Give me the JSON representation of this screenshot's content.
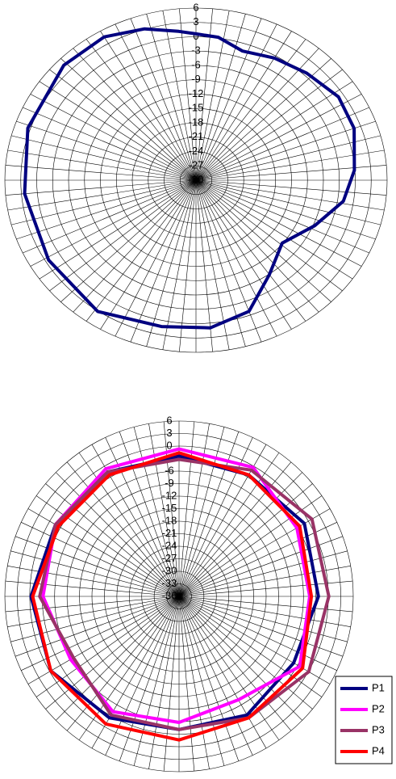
{
  "chart_data": [
    {
      "type": "polar",
      "grid": true,
      "rlim": [
        -30,
        6
      ],
      "rticks": [
        6,
        3,
        0,
        -3,
        -6,
        -9,
        -12,
        -15,
        -18,
        -21,
        -24,
        -27,
        -30
      ],
      "series": [
        {
          "color": "#000080",
          "angles": [
            0,
            8,
            18,
            30,
            43,
            57,
            70,
            86,
            99,
            113,
            129,
            145,
            160,
            175,
            192,
            214,
            239,
            265,
            289,
            314,
            330,
            343,
            354
          ],
          "values": [
            0.6,
            0.2,
            -1.6,
            -0.5,
            0.6,
            2.0,
            1.7,
            -0.1,
            -1.9,
            -5.7,
            -9.1,
            -5.9,
            -0.8,
            1.0,
            1.3,
            3.1,
            2.4,
            2.4,
            3.5,
            4.6,
            4.6,
            3.1,
            1.3
          ]
        }
      ]
    },
    {
      "type": "polar",
      "grid": true,
      "legend": "lower right",
      "rlim": [
        -36,
        6
      ],
      "rticks": [
        6,
        3,
        0,
        -3,
        -6,
        -9,
        -12,
        -15,
        -18,
        -21,
        -24,
        -27,
        -30,
        -33,
        -36
      ],
      "series": [
        {
          "name": "P1",
          "color": "#000080",
          "angles": [
            0,
            30,
            60,
            90,
            120,
            150,
            180,
            210,
            240,
            270,
            300,
            330
          ],
          "values": [
            -2.4,
            -2.4,
            -1.1,
            -2.4,
            -4.1,
            -3.2,
            -4.1,
            -2.4,
            -0.3,
            -0.3,
            -1.6,
            -1.6
          ]
        },
        {
          "name": "P2",
          "color": "#ff00ff",
          "angles": [
            0,
            30,
            60,
            90,
            120,
            150,
            180,
            210,
            240,
            270,
            300,
            330
          ],
          "values": [
            -0.7,
            -0.3,
            -3.2,
            -4.5,
            -2.4,
            -7.4,
            -5.8,
            -4.1,
            -5.8,
            -3.2,
            -1.6,
            -0.7
          ]
        },
        {
          "name": "P3",
          "color": "#993366",
          "angles": [
            0,
            30,
            60,
            90,
            120,
            150,
            180,
            210,
            240,
            270,
            300,
            330
          ],
          "values": [
            -3.2,
            -1.1,
            1.0,
            0.1,
            0.1,
            -2.4,
            -4.1,
            -3.2,
            -6.6,
            -2.4,
            -1.6,
            -1.6
          ]
        },
        {
          "name": "P4",
          "color": "#ff0000",
          "angles": [
            0,
            30,
            60,
            90,
            120,
            150,
            180,
            210,
            240,
            270,
            300,
            330
          ],
          "values": [
            -1.6,
            -2.4,
            -2.4,
            -4.1,
            -1.6,
            -2.4,
            -1.6,
            -0.7,
            -0.3,
            -0.7,
            -2.4,
            -2.4
          ]
        }
      ]
    }
  ]
}
